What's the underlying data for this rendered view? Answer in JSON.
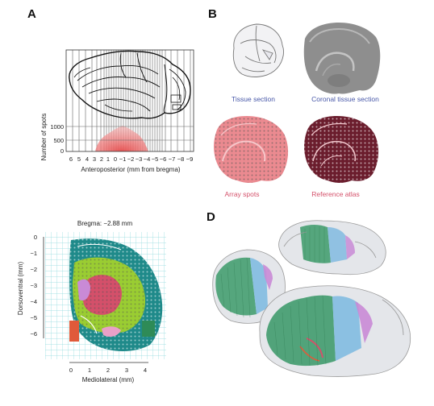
{
  "panels": {
    "a": {
      "label": "A",
      "yaxis_label": "Number of spots",
      "xaxis_label": "Anteroposterior (mm from bregma)",
      "y_ticks": [
        "1000",
        "500",
        "0"
      ],
      "x_ticks": [
        "6",
        "5",
        "4",
        "3",
        "2",
        "1",
        "0",
        "−1",
        "−2",
        "−3",
        "−4",
        "−5",
        "−6",
        "−7",
        "−8",
        "−9"
      ]
    },
    "b": {
      "label": "B",
      "captions": {
        "tissue_section": "Tissue section",
        "coronal": "Coronal tissue section",
        "array_spots": "Array spots",
        "reference_atlas": "Reference atlas"
      }
    },
    "c": {
      "title": "Bregma: −2.88 mm",
      "yaxis_label": "Dorsoventral (mm)",
      "xaxis_label": "Mediolateral (mm)",
      "y_ticks": [
        "0",
        "−1",
        "−2",
        "−3",
        "−4",
        "−5",
        "−6"
      ],
      "x_ticks": [
        "0",
        "1",
        "2",
        "3",
        "4"
      ]
    },
    "d": {
      "label": "D"
    }
  },
  "colors": {
    "blue_caption": "#4757a8",
    "red_caption": "#d4506a",
    "histogram": "#e74c4c",
    "cortex": "#1f8a8a",
    "hippocampus": "#9acd32",
    "thalamus": "#d4506a",
    "grid": "#7fd4d8"
  }
}
